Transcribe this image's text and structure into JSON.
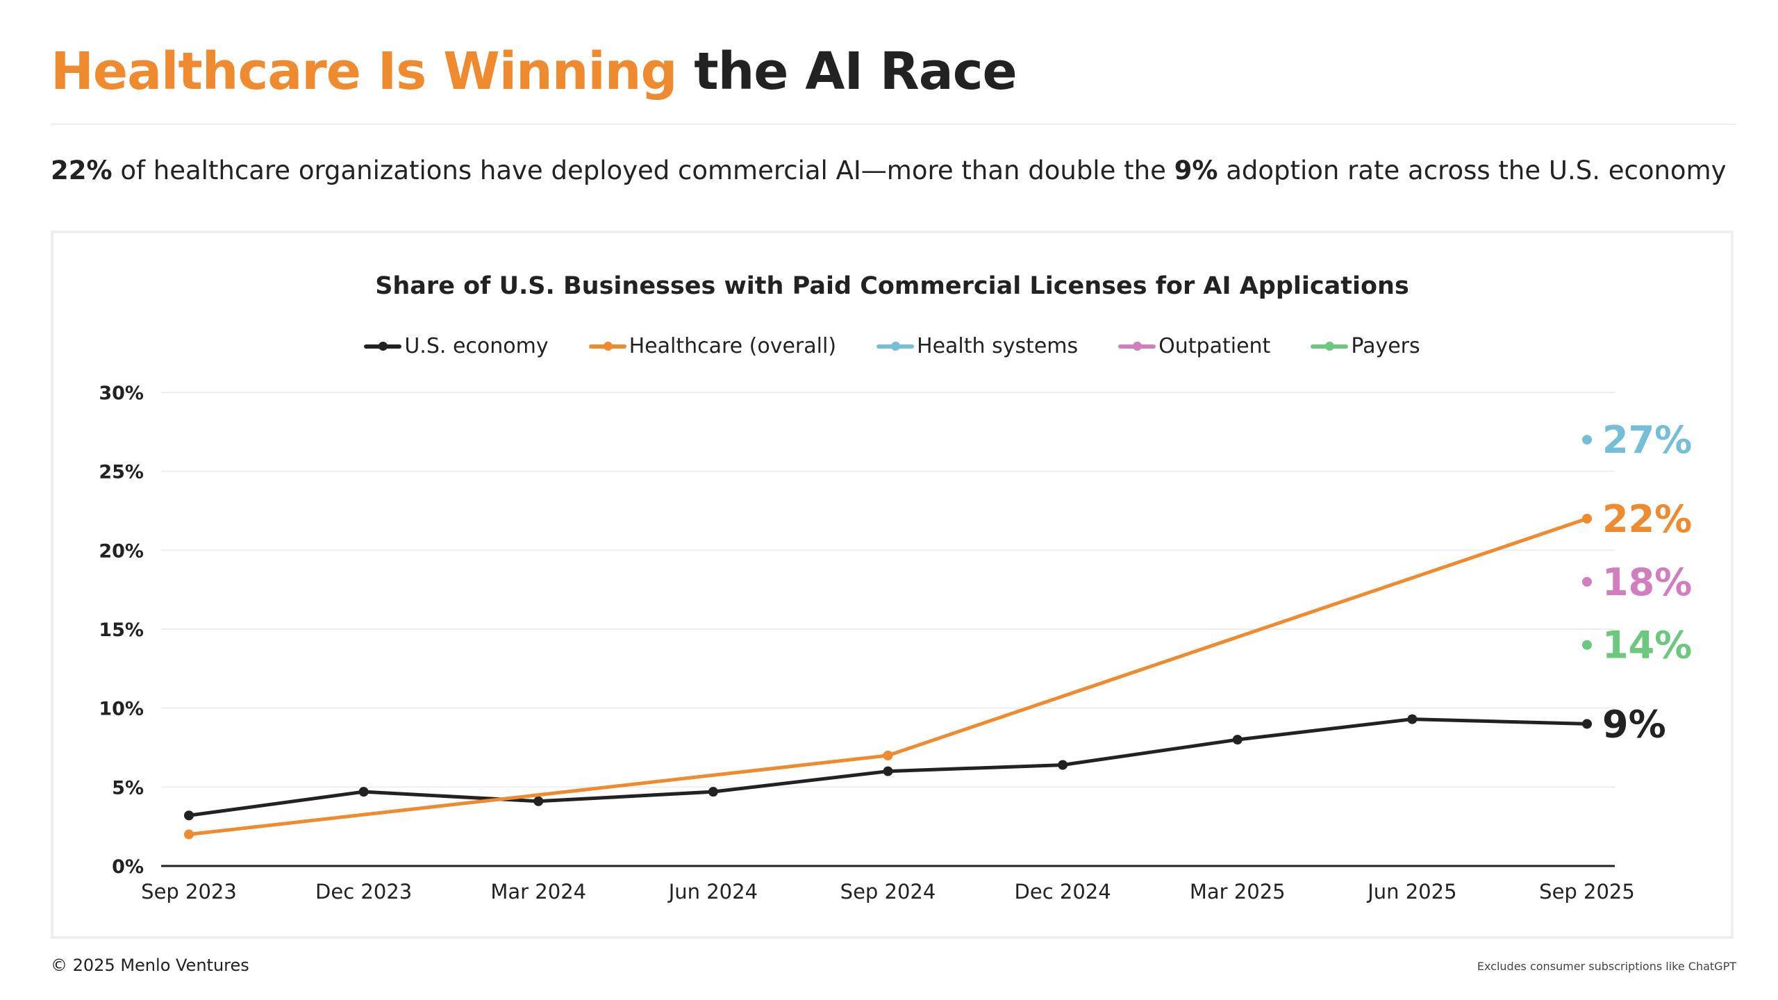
{
  "header": {
    "title_accent": "Healthcare Is Winning",
    "title_rest": " the AI Race",
    "subtitle_parts": [
      "22%",
      " of healthcare organizations have deployed commercial AI—more than double the ",
      "9%",
      " adoption rate across the U.S. economy"
    ]
  },
  "colors": {
    "accent": "#F08A2E",
    "economy": "#222222",
    "health_systems": "#74BFD6",
    "outpatient": "#D27DBE",
    "payers": "#6CC77F"
  },
  "chart_data": {
    "type": "line",
    "title": "Share of U.S. Businesses with Paid Commercial Licenses for AI Applications",
    "x": [
      "Sep 2023",
      "Dec 2023",
      "Mar 2024",
      "Jun 2024",
      "Sep 2024",
      "Dec 2024",
      "Mar 2025",
      "Jun 2025",
      "Sep 2025"
    ],
    "yticks": [
      "0%",
      "5%",
      "10%",
      "15%",
      "20%",
      "25%",
      "30%"
    ],
    "ylim": [
      0,
      30
    ],
    "grid": true,
    "legend_placement": "top",
    "series": [
      {
        "name": "U.S. economy",
        "color": "#222222",
        "values": [
          3.2,
          4.7,
          4.1,
          4.7,
          6.0,
          6.4,
          8.0,
          9.3,
          9.0
        ],
        "end_label": "9%"
      },
      {
        "name": "Healthcare (overall)",
        "color": "#F08A2E",
        "values": [
          2.0,
          null,
          null,
          null,
          7.0,
          null,
          null,
          null,
          22.0
        ],
        "end_label": "22%"
      },
      {
        "name": "Health systems",
        "color": "#74BFD6",
        "values": [
          null,
          null,
          null,
          null,
          null,
          null,
          null,
          null,
          27.0
        ],
        "end_label": "27%"
      },
      {
        "name": "Outpatient",
        "color": "#D27DBE",
        "values": [
          null,
          null,
          null,
          null,
          null,
          null,
          null,
          null,
          18.0
        ],
        "end_label": "18%"
      },
      {
        "name": "Payers",
        "color": "#6CC77F",
        "values": [
          null,
          null,
          null,
          null,
          null,
          null,
          null,
          null,
          14.0
        ],
        "end_label": "14%"
      }
    ]
  },
  "footer": {
    "copyright": "© 2025 Menlo Ventures",
    "note": "Excludes consumer subscriptions like ChatGPT"
  }
}
